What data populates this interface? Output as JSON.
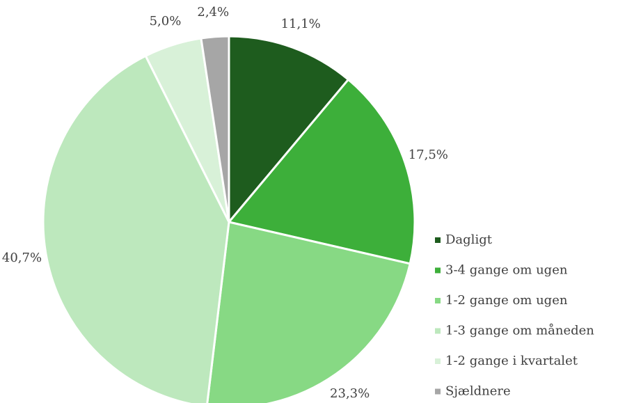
{
  "chart_data": {
    "type": "pie",
    "categories": [
      "Dagligt",
      "3-4 gange om ugen",
      "1-2 gange om ugen",
      "1-3 gange om måneden",
      "1-2 gange i kvartalet",
      "Sjældnere"
    ],
    "values": [
      11.1,
      17.5,
      23.3,
      40.7,
      5.0,
      2.4
    ],
    "value_labels": [
      "11,1%",
      "17,5%",
      "23,3%",
      "40,7%",
      "5,0%",
      "2,4%"
    ],
    "colors": [
      "#1e5c1e",
      "#3daf3a",
      "#87d984",
      "#bde8bd",
      "#d8f1d8",
      "#a6a6a6"
    ],
    "legend": "right"
  }
}
